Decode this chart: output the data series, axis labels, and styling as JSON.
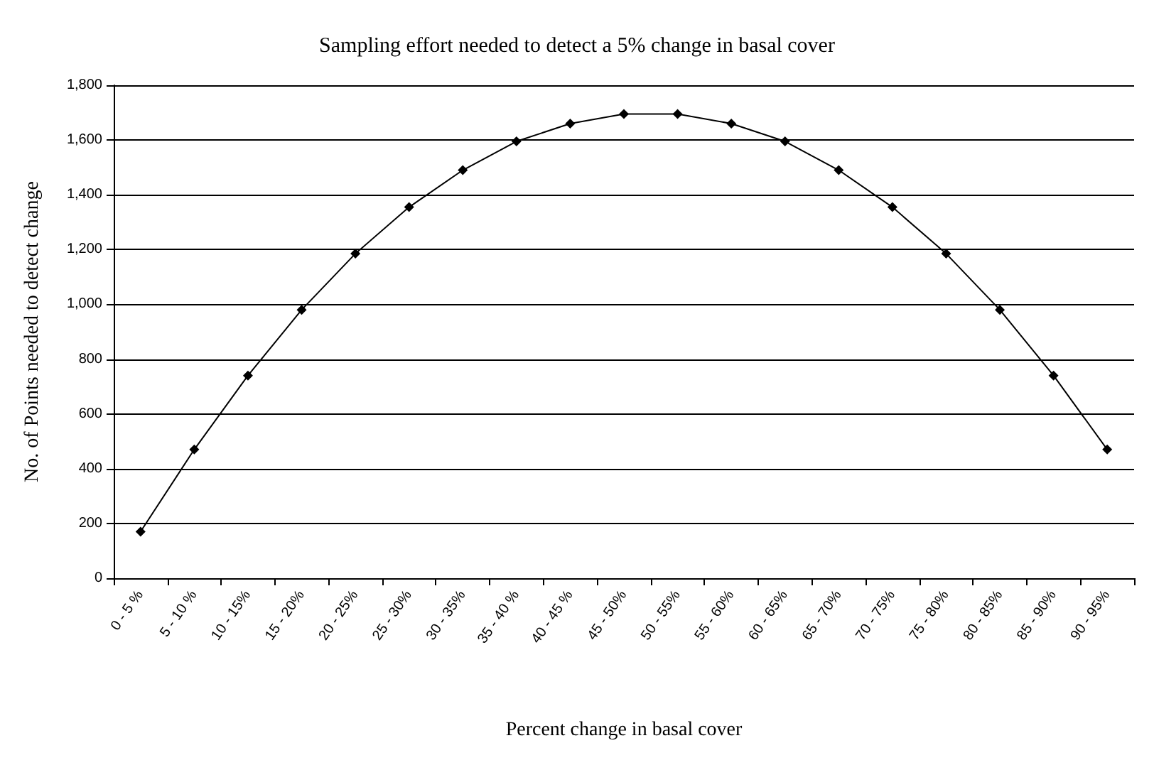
{
  "chart_data": {
    "type": "line",
    "title": "Sampling effort needed to detect a 5% change in basal cover",
    "xlabel": "Percent change in basal cover",
    "ylabel": "No. of Points needed to detect change",
    "categories": [
      "0 - 5 %",
      "5 - 10 %",
      "10 - 15%",
      "15 - 20%",
      "20 - 25%",
      "25 - 30%",
      "30 - 35%",
      "35 - 40 %",
      "40 - 45 %",
      "45 - 50%",
      "50 - 55%",
      "55 - 60%",
      "60 - 65%",
      "65 - 70%",
      "70 - 75%",
      "75 - 80%",
      "80 - 85%",
      "85 - 90%",
      "90 - 95%"
    ],
    "series": [
      {
        "color": "#000000",
        "values": [
          170,
          470,
          740,
          980,
          1185,
          1355,
          1490,
          1595,
          1660,
          1695,
          1695,
          1660,
          1595,
          1490,
          1355,
          1185,
          980,
          740,
          470
        ]
      }
    ],
    "ylim": [
      0,
      1800
    ],
    "yticks": [
      0,
      200,
      400,
      600,
      800,
      {
        "value": 1000,
        "label": "1,000"
      },
      {
        "value": 1200,
        "label": "1,200"
      },
      {
        "value": 1400,
        "label": "1,400"
      },
      {
        "value": 1600,
        "label": "1,600"
      },
      {
        "value": 1800,
        "label": "1,800"
      }
    ],
    "grid": "y",
    "marker": "diamond",
    "line_style": "solid"
  }
}
